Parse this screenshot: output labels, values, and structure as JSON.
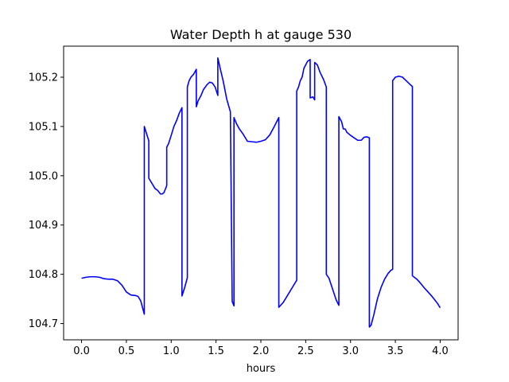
{
  "chart_data": {
    "type": "line",
    "title": "Water Depth h at gauge 530",
    "xlabel": "hours",
    "ylabel": "",
    "xlim": [
      -0.2,
      4.2
    ],
    "ylim": [
      104.667,
      105.263
    ],
    "xticks": [
      0.0,
      0.5,
      1.0,
      1.5,
      2.0,
      2.5,
      3.0,
      3.5,
      4.0
    ],
    "xtick_labels": [
      "0.0",
      "0.5",
      "1.0",
      "1.5",
      "2.0",
      "2.5",
      "3.0",
      "3.5",
      "4.0"
    ],
    "yticks": [
      104.7,
      104.8,
      104.9,
      105.0,
      105.1,
      105.2
    ],
    "ytick_labels": [
      "104.7",
      "104.8",
      "104.9",
      "105.0",
      "105.1",
      "105.2"
    ],
    "grid": false,
    "series": [
      {
        "color": "#0000ff",
        "x": [
          0.0,
          0.05,
          0.1,
          0.15,
          0.2,
          0.25,
          0.3,
          0.35,
          0.4,
          0.45,
          0.5,
          0.55,
          0.6,
          0.63,
          0.66,
          0.7,
          0.7,
          0.75,
          0.75,
          0.78,
          0.82,
          0.85,
          0.88,
          0.9,
          0.92,
          0.95,
          0.95,
          0.97,
          1.0,
          1.03,
          1.06,
          1.09,
          1.12,
          1.12,
          1.15,
          1.18,
          1.18,
          1.2,
          1.22,
          1.25,
          1.28,
          1.28,
          1.3,
          1.33,
          1.36,
          1.4,
          1.43,
          1.46,
          1.49,
          1.52,
          1.52,
          1.55,
          1.58,
          1.62,
          1.66,
          1.68,
          1.68,
          1.7,
          1.7,
          1.73,
          1.76,
          1.8,
          1.85,
          1.9,
          1.95,
          2.0,
          2.05,
          2.1,
          2.15,
          2.2,
          2.2,
          2.25,
          2.3,
          2.35,
          2.4,
          2.4,
          2.42,
          2.44,
          2.46,
          2.48,
          2.5,
          2.52,
          2.55,
          2.55,
          2.58,
          2.6,
          2.6,
          2.63,
          2.66,
          2.7,
          2.73,
          2.73,
          2.76,
          2.8,
          2.84,
          2.87,
          2.87,
          2.9,
          2.92,
          2.94,
          2.96,
          3.0,
          3.04,
          3.08,
          3.12,
          3.15,
          3.18,
          3.21,
          3.21,
          3.23,
          3.26,
          3.3,
          3.34,
          3.38,
          3.42,
          3.45,
          3.47,
          3.47,
          3.5,
          3.54,
          3.58,
          3.62,
          3.66,
          3.69,
          3.69,
          3.74,
          3.78,
          3.82,
          3.86,
          3.9,
          3.94,
          3.97,
          4.0
        ],
        "y": [
          104.792,
          104.794,
          104.795,
          104.795,
          104.794,
          104.791,
          104.79,
          104.79,
          104.787,
          104.778,
          104.764,
          104.758,
          104.757,
          104.755,
          104.746,
          104.719,
          105.1,
          105.071,
          104.995,
          104.986,
          104.974,
          104.97,
          104.963,
          104.963,
          104.966,
          104.98,
          105.058,
          105.065,
          105.082,
          105.1,
          105.112,
          105.127,
          105.138,
          104.756,
          104.773,
          104.793,
          105.18,
          105.193,
          105.2,
          105.206,
          105.216,
          105.14,
          105.152,
          105.162,
          105.175,
          105.185,
          105.19,
          105.188,
          105.18,
          105.163,
          105.239,
          105.215,
          105.192,
          105.155,
          105.13,
          104.745,
          104.745,
          104.736,
          105.118,
          105.105,
          105.095,
          105.085,
          105.07,
          105.069,
          105.068,
          105.07,
          105.073,
          105.083,
          105.1,
          105.118,
          104.733,
          104.743,
          104.758,
          104.773,
          104.788,
          105.172,
          105.18,
          105.193,
          105.2,
          105.218,
          105.225,
          105.232,
          105.236,
          105.158,
          105.16,
          105.154,
          105.23,
          105.225,
          105.21,
          105.195,
          105.18,
          104.8,
          104.792,
          104.77,
          104.748,
          104.737,
          105.12,
          105.11,
          105.095,
          105.095,
          105.088,
          105.082,
          105.077,
          105.072,
          105.072,
          105.078,
          105.079,
          105.077,
          104.693,
          104.697,
          104.718,
          104.75,
          104.773,
          104.79,
          104.802,
          104.808,
          104.81,
          105.193,
          105.2,
          105.202,
          105.2,
          105.193,
          105.186,
          105.181,
          104.797,
          104.79,
          104.782,
          104.773,
          104.765,
          104.757,
          104.748,
          104.741,
          104.732
        ]
      }
    ]
  }
}
